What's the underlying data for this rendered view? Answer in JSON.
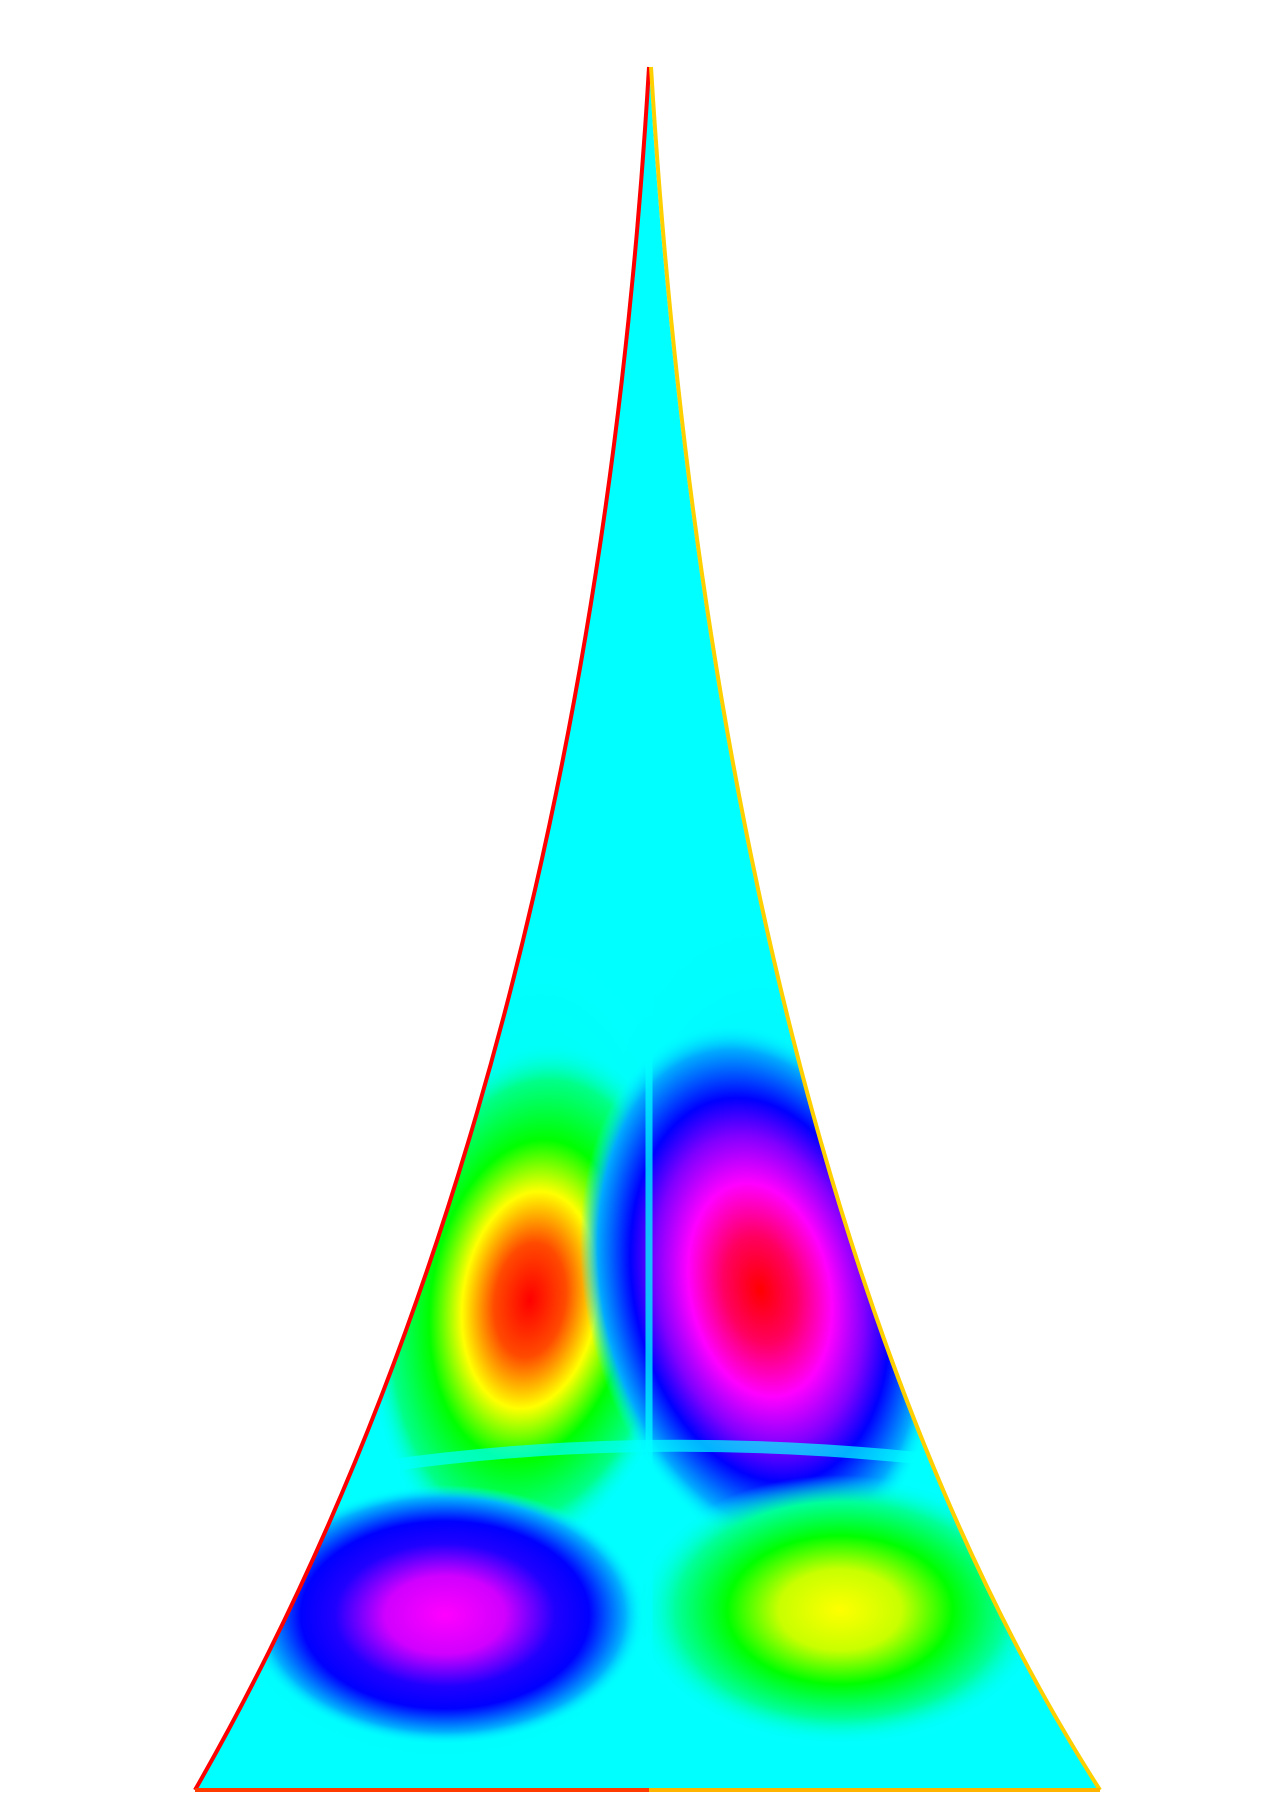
{
  "figure": {
    "description_text": "",
    "colors": {
      "background": "#ffffff",
      "base_field": "#00ffff",
      "outline_left": "#ff0000",
      "outline_right": "#ffd000",
      "outline_bottom_left": "#ff3b00",
      "outline_bottom_right": "#ffb400",
      "positive_outer": "#00ff00",
      "positive_mid": "#ffff00",
      "positive_core": "#ff0000",
      "negative_outer": "#0000ff",
      "negative_mid": "#ff00ff",
      "negative_core": "#ff0000",
      "nodal_line": "#00ffff"
    },
    "lobes": [
      {
        "name": "upper-left-lobe",
        "sign": "positive",
        "has_core": true
      },
      {
        "name": "upper-right-lobe",
        "sign": "negative",
        "has_core": true
      },
      {
        "name": "lower-left-lobe",
        "sign": "negative",
        "has_core": false
      },
      {
        "name": "lower-right-lobe",
        "sign": "positive",
        "has_core": false
      }
    ]
  }
}
